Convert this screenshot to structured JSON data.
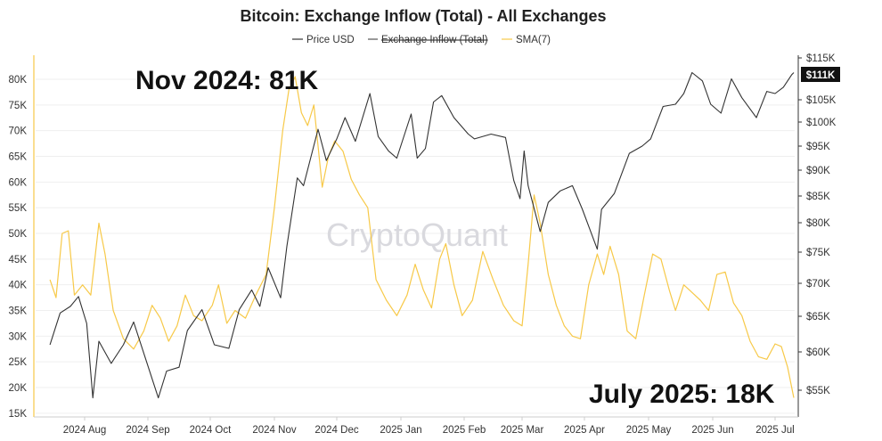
{
  "chart_data": {
    "type": "line",
    "title": "Bitcoin: Exchange Inflow (Total) - All Exchanges",
    "watermark": "CryptoQuant",
    "legend": [
      {
        "label": "Price USD",
        "color": "#333333",
        "style": "solid"
      },
      {
        "label": "Exchange Inflow (Total)",
        "color": "#555555",
        "style": "strikethrough"
      },
      {
        "label": "SMA(7)",
        "color": "#f7c948",
        "style": "solid"
      }
    ],
    "x_ticks": [
      "2024 Aug",
      "2024 Sep",
      "2024 Oct",
      "2024 Nov",
      "2024 Dec",
      "2025 Jan",
      "2025 Feb",
      "2025 Mar",
      "2025 Apr",
      "2025 May",
      "2025 Jun",
      "2025 Jul"
    ],
    "left_axis": {
      "ticks": [
        "80K",
        "75K",
        "70K",
        "65K",
        "60K",
        "55K",
        "50K",
        "45K",
        "40K",
        "35K",
        "30K",
        "25K",
        "20K",
        "15K"
      ],
      "ylim": [
        15000,
        82000
      ]
    },
    "right_axis": {
      "ticks": [
        "$115K",
        "$105K",
        "$100K",
        "$95K",
        "$90K",
        "$85K",
        "$80K",
        "$75K",
        "$70K",
        "$65K",
        "$60K",
        "$55K"
      ],
      "scale": "log",
      "ylim": [
        52000,
        117000
      ]
    },
    "current_price_badge": "$111K",
    "annotations": [
      "Nov 2024: 81K",
      "July 2025: 18K"
    ],
    "series": [
      {
        "name": "Price USD",
        "axis": "right",
        "color": "#333333",
        "values": [
          [
            "2024-07-15",
            61000
          ],
          [
            "2024-07-20",
            65500
          ],
          [
            "2024-07-25",
            66500
          ],
          [
            "2024-07-29",
            68000
          ],
          [
            "2024-08-02",
            64000
          ],
          [
            "2024-08-05",
            54000
          ],
          [
            "2024-08-08",
            61500
          ],
          [
            "2024-08-14",
            58500
          ],
          [
            "2024-08-20",
            61000
          ],
          [
            "2024-08-25",
            64200
          ],
          [
            "2024-08-31",
            59000
          ],
          [
            "2024-09-06",
            54000
          ],
          [
            "2024-09-10",
            57500
          ],
          [
            "2024-09-16",
            58000
          ],
          [
            "2024-09-20",
            63000
          ],
          [
            "2024-09-27",
            66000
          ],
          [
            "2024-10-03",
            61000
          ],
          [
            "2024-10-10",
            60500
          ],
          [
            "2024-10-15",
            66000
          ],
          [
            "2024-10-21",
            69000
          ],
          [
            "2024-10-25",
            66500
          ],
          [
            "2024-10-29",
            72500
          ],
          [
            "2024-11-04",
            67800
          ],
          [
            "2024-11-07",
            76000
          ],
          [
            "2024-11-12",
            88500
          ],
          [
            "2024-11-15",
            87000
          ],
          [
            "2024-11-22",
            98500
          ],
          [
            "2024-11-26",
            92000
          ],
          [
            "2024-12-01",
            96500
          ],
          [
            "2024-12-05",
            101000
          ],
          [
            "2024-12-10",
            96000
          ],
          [
            "2024-12-17",
            106500
          ],
          [
            "2024-12-21",
            97000
          ],
          [
            "2024-12-26",
            94000
          ],
          [
            "2024-12-30",
            92500
          ],
          [
            "2025-01-06",
            101800
          ],
          [
            "2025-01-09",
            92500
          ],
          [
            "2025-01-13",
            94500
          ],
          [
            "2025-01-17",
            104500
          ],
          [
            "2025-01-21",
            106000
          ],
          [
            "2025-01-27",
            101000
          ],
          [
            "2025-02-03",
            97500
          ],
          [
            "2025-02-06",
            96500
          ],
          [
            "2025-02-14",
            97500
          ],
          [
            "2025-02-21",
            96800
          ],
          [
            "2025-02-25",
            88000
          ],
          [
            "2025-02-28",
            84500
          ],
          [
            "2025-03-02",
            94000
          ],
          [
            "2025-03-04",
            87000
          ],
          [
            "2025-03-10",
            78500
          ],
          [
            "2025-03-14",
            83800
          ],
          [
            "2025-03-20",
            86000
          ],
          [
            "2025-03-26",
            87000
          ],
          [
            "2025-03-31",
            82500
          ],
          [
            "2025-04-07",
            75500
          ],
          [
            "2025-04-09",
            82500
          ],
          [
            "2025-04-15",
            85500
          ],
          [
            "2025-04-22",
            93500
          ],
          [
            "2025-04-28",
            95000
          ],
          [
            "2025-05-02",
            96500
          ],
          [
            "2025-05-08",
            103500
          ],
          [
            "2025-05-14",
            104000
          ],
          [
            "2025-05-18",
            106500
          ],
          [
            "2025-05-22",
            111500
          ],
          [
            "2025-05-27",
            109500
          ],
          [
            "2025-05-31",
            104000
          ],
          [
            "2025-06-05",
            102000
          ],
          [
            "2025-06-10",
            110000
          ],
          [
            "2025-06-15",
            105500
          ],
          [
            "2025-06-22",
            101000
          ],
          [
            "2025-06-27",
            107000
          ],
          [
            "2025-07-01",
            106500
          ],
          [
            "2025-07-05",
            108000
          ],
          [
            "2025-07-09",
            111000
          ],
          [
            "2025-07-10",
            111500
          ]
        ]
      },
      {
        "name": "SMA(7)",
        "axis": "left",
        "color": "#f7c948",
        "values": [
          [
            "2024-07-15",
            41000
          ],
          [
            "2024-07-18",
            37500
          ],
          [
            "2024-07-21",
            50000
          ],
          [
            "2024-07-24",
            50500
          ],
          [
            "2024-07-27",
            38000
          ],
          [
            "2024-07-31",
            40000
          ],
          [
            "2024-08-04",
            38000
          ],
          [
            "2024-08-08",
            52000
          ],
          [
            "2024-08-11",
            46000
          ],
          [
            "2024-08-15",
            35000
          ],
          [
            "2024-08-20",
            29500
          ],
          [
            "2024-08-25",
            27500
          ],
          [
            "2024-08-30",
            31000
          ],
          [
            "2024-09-03",
            36000
          ],
          [
            "2024-09-07",
            33500
          ],
          [
            "2024-09-11",
            29000
          ],
          [
            "2024-09-15",
            32000
          ],
          [
            "2024-09-19",
            38000
          ],
          [
            "2024-09-23",
            34000
          ],
          [
            "2024-09-27",
            33000
          ],
          [
            "2024-10-02",
            36000
          ],
          [
            "2024-10-05",
            40000
          ],
          [
            "2024-10-09",
            32500
          ],
          [
            "2024-10-13",
            35000
          ],
          [
            "2024-10-18",
            33500
          ],
          [
            "2024-10-23",
            38000
          ],
          [
            "2024-10-28",
            42000
          ],
          [
            "2024-11-01",
            55000
          ],
          [
            "2024-11-05",
            70000
          ],
          [
            "2024-11-08",
            78000
          ],
          [
            "2024-11-11",
            80500
          ],
          [
            "2024-11-14",
            73500
          ],
          [
            "2024-11-17",
            71000
          ],
          [
            "2024-11-20",
            75000
          ],
          [
            "2024-11-24",
            59000
          ],
          [
            "2024-11-27",
            65000
          ],
          [
            "2024-11-30",
            68000
          ],
          [
            "2024-12-04",
            66000
          ],
          [
            "2024-12-08",
            60500
          ],
          [
            "2024-12-12",
            57500
          ],
          [
            "2024-12-16",
            55000
          ],
          [
            "2024-12-20",
            41000
          ],
          [
            "2024-12-25",
            37000
          ],
          [
            "2024-12-30",
            34000
          ],
          [
            "2025-01-04",
            38000
          ],
          [
            "2025-01-08",
            44000
          ],
          [
            "2025-01-12",
            39000
          ],
          [
            "2025-01-16",
            35500
          ],
          [
            "2025-01-20",
            45000
          ],
          [
            "2025-01-23",
            48000
          ],
          [
            "2025-01-27",
            40000
          ],
          [
            "2025-01-31",
            34000
          ],
          [
            "2025-02-05",
            37000
          ],
          [
            "2025-02-10",
            46500
          ],
          [
            "2025-02-15",
            41000
          ],
          [
            "2025-02-20",
            36000
          ],
          [
            "2025-02-25",
            33000
          ],
          [
            "2025-03-01",
            32000
          ],
          [
            "2025-03-04",
            44000
          ],
          [
            "2025-03-07",
            57500
          ],
          [
            "2025-03-10",
            52000
          ],
          [
            "2025-03-14",
            42000
          ],
          [
            "2025-03-18",
            36000
          ],
          [
            "2025-03-22",
            32000
          ],
          [
            "2025-03-26",
            30000
          ],
          [
            "2025-03-30",
            29500
          ],
          [
            "2025-04-03",
            40000
          ],
          [
            "2025-04-07",
            46000
          ],
          [
            "2025-04-10",
            42000
          ],
          [
            "2025-04-13",
            47500
          ],
          [
            "2025-04-17",
            42000
          ],
          [
            "2025-04-21",
            31000
          ],
          [
            "2025-04-25",
            29500
          ],
          [
            "2025-04-29",
            38000
          ],
          [
            "2025-05-03",
            46000
          ],
          [
            "2025-05-07",
            45000
          ],
          [
            "2025-05-11",
            39000
          ],
          [
            "2025-05-14",
            35000
          ],
          [
            "2025-05-18",
            40000
          ],
          [
            "2025-05-22",
            38500
          ],
          [
            "2025-05-26",
            37000
          ],
          [
            "2025-05-30",
            35000
          ],
          [
            "2025-06-03",
            42000
          ],
          [
            "2025-06-07",
            42500
          ],
          [
            "2025-06-11",
            36500
          ],
          [
            "2025-06-15",
            34000
          ],
          [
            "2025-06-19",
            29000
          ],
          [
            "2025-06-23",
            26000
          ],
          [
            "2025-06-27",
            25500
          ],
          [
            "2025-07-01",
            28500
          ],
          [
            "2025-07-04",
            28000
          ],
          [
            "2025-07-07",
            24000
          ],
          [
            "2025-07-10",
            18000
          ]
        ]
      }
    ]
  }
}
